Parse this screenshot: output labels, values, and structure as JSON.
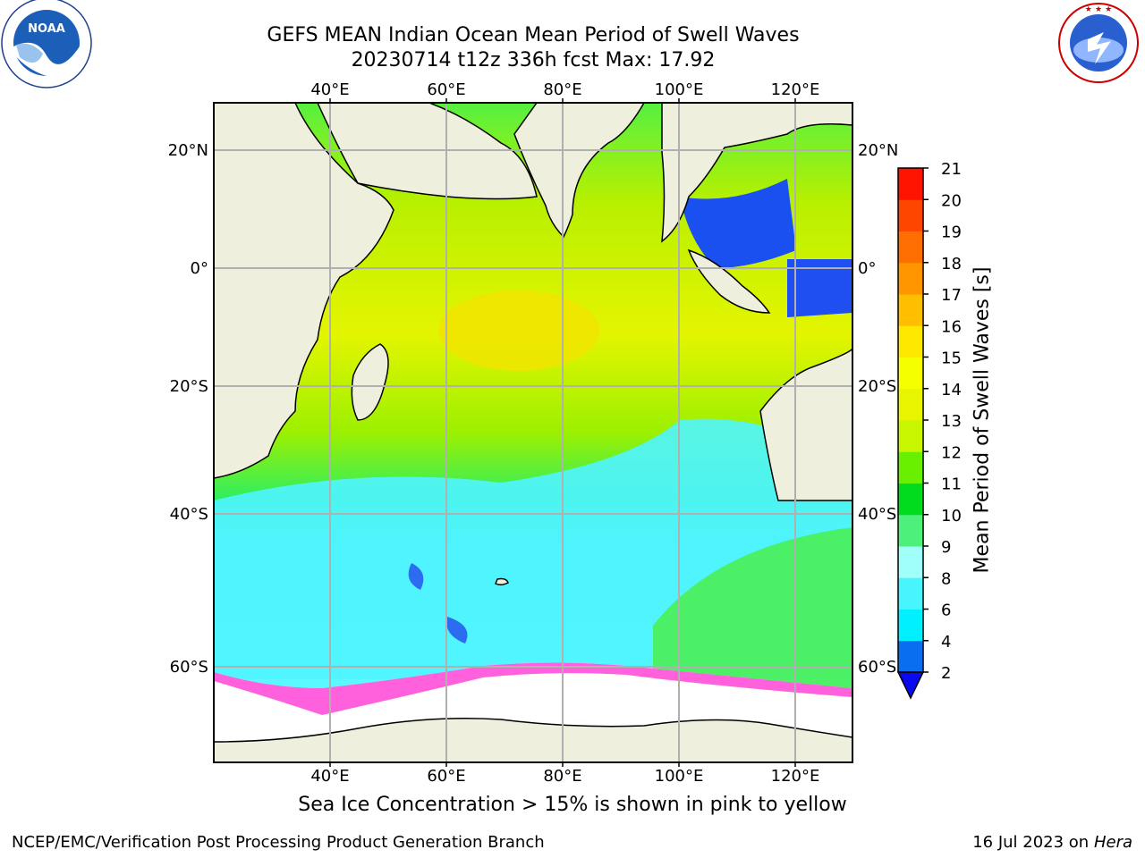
{
  "header": {
    "title_line1": "GEFS MEAN Indian Ocean Mean Period of Swell Waves",
    "title_line2": "20230714 t12z 336h fcst   Max: 17.92"
  },
  "logos": {
    "left": {
      "icon": "noaa-logo",
      "text": "NOAA",
      "ring_text": "NATIONAL OCEANIC AND ATMOSPHERIC ADMINISTRATION · U.S. DEPARTMENT OF COMMERCE"
    },
    "right": {
      "icon": "nws-logo",
      "ring_text": "NATIONAL WEATHER SERVICE"
    }
  },
  "map": {
    "lon_ticks": [
      "40°E",
      "60°E",
      "80°E",
      "100°E",
      "120°E"
    ],
    "lat_ticks": [
      "20°N",
      "0°",
      "20°S",
      "40°S",
      "60°S"
    ],
    "lon_range": [
      20,
      130
    ],
    "lat_range": [
      -70,
      28
    ],
    "grid": true,
    "land_color": "#efefdd",
    "ice_color": "#ffffff"
  },
  "colorbar": {
    "label": "Mean Period of Swell Waves [s]",
    "ticks": [
      "2",
      "4",
      "6",
      "8",
      "9",
      "10",
      "11",
      "12",
      "13",
      "14",
      "15",
      "16",
      "17",
      "18",
      "19",
      "20",
      "21"
    ],
    "colors": [
      "#0a6ef0",
      "#00f0ff",
      "#48f5ff",
      "#a0fff8",
      "#4cf07a",
      "#00dc1e",
      "#68f000",
      "#c8f500",
      "#e8f500",
      "#f5ff00",
      "#ffe800",
      "#ffbe00",
      "#ff9600",
      "#ff6e00",
      "#ff4600",
      "#ff1400"
    ],
    "extend_min_color": "#0a0af0"
  },
  "caption": "Sea Ice Concentration > 15% is shown in pink to yellow",
  "footer": {
    "left": "NCEP/EMC/Verification Post Processing Product Generation Branch",
    "right_prefix": "16 Jul 2023 on ",
    "right_host": "Hera"
  }
}
